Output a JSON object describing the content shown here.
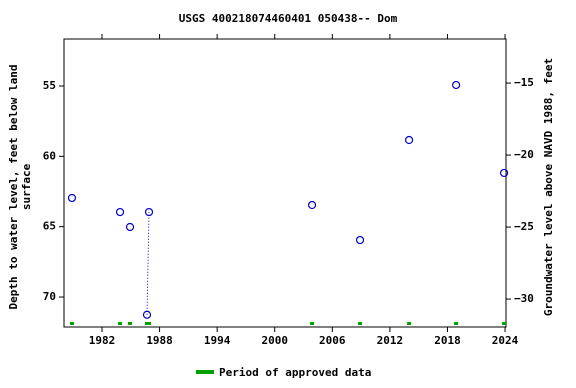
{
  "chart_data": {
    "type": "scatter",
    "title": "USGS 400218074460401 050438-- Dom",
    "y_label": [
      "Depth to water level, feet below land",
      "surface"
    ],
    "y2_label": "Groundwater level above NAVD 1988, feet",
    "legend_label": "Period of approved data",
    "approved_color": "#00a000",
    "xlim": [
      1978.04,
      2024.1
    ],
    "xticks": [
      1982,
      1988,
      1994,
      2000,
      2006,
      2012,
      2018,
      2024
    ],
    "ylim": [
      72.13,
      51.66
    ],
    "yticks": [
      55,
      60,
      65,
      70
    ],
    "y2lim": [
      -31.94,
      -11.94
    ],
    "y2ticks": [
      {
        "value": -15,
        "label": "−15"
      },
      {
        "value": -20,
        "label": "−20"
      },
      {
        "value": -25,
        "label": "−25"
      },
      {
        "value": -30,
        "label": "−30"
      }
    ],
    "series": [
      {
        "color": "#0000cc",
        "x": [
          1978.87,
          1983.88,
          1984.92,
          1986.69,
          1986.9,
          2003.89,
          2008.89,
          2014.0,
          2018.9,
          2023.9
        ],
        "values": [
          62.96,
          63.96,
          65.02,
          71.26,
          63.96,
          63.46,
          65.95,
          58.84,
          54.93,
          61.18
        ]
      }
    ]
  }
}
